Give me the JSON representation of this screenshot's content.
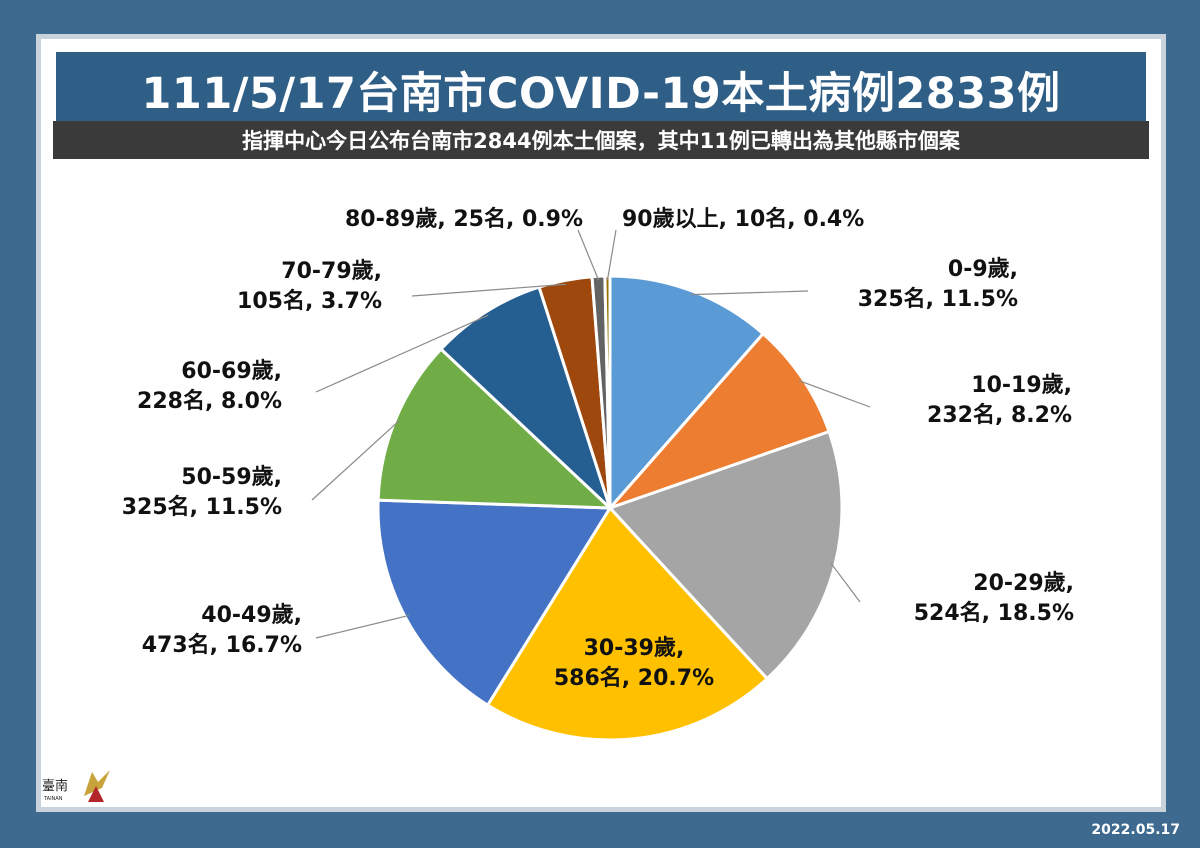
{
  "title": "111/5/17台南市COVID-19本土病例2833例",
  "subtitle": "指揮中心今日公布台南市2844例本土個案，其中11例已轉出為其他縣市個案",
  "date": "2022.05.17",
  "logo": {
    "text": "臺南",
    "sub": "TAINAN",
    "icon": "tainan-city-logo"
  },
  "chart_data": {
    "type": "pie",
    "title": "111/5/17台南市COVID-19本土病例2833例",
    "total": 2833,
    "slices": [
      {
        "category": "0-9歲",
        "count": 325,
        "percent": 11.5,
        "label_line1": "0-9歲,",
        "label_line2": "325名, 11.5%",
        "color": "#5b9bd5"
      },
      {
        "category": "10-19歲",
        "count": 232,
        "percent": 8.2,
        "label_line1": "10-19歲,",
        "label_line2": "232名, 8.2%",
        "color": "#ed7d31"
      },
      {
        "category": "20-29歲",
        "count": 524,
        "percent": 18.5,
        "label_line1": "20-29歲,",
        "label_line2": "524名, 18.5%",
        "color": "#a5a5a5"
      },
      {
        "category": "30-39歲",
        "count": 586,
        "percent": 20.7,
        "label_line1": "30-39歲,",
        "label_line2": "586名, 20.7%",
        "color": "#ffc000"
      },
      {
        "category": "40-49歲",
        "count": 473,
        "percent": 16.7,
        "label_line1": "40-49歲,",
        "label_line2": "473名, 16.7%",
        "color": "#4472c4"
      },
      {
        "category": "50-59歲",
        "count": 325,
        "percent": 11.5,
        "label_line1": "50-59歲,",
        "label_line2": "325名, 11.5%",
        "color": "#70ad47"
      },
      {
        "category": "60-69歲",
        "count": 228,
        "percent": 8.0,
        "label_line1": "60-69歲,",
        "label_line2": "228名, 8.0%",
        "color": "#255e91"
      },
      {
        "category": "70-79歲",
        "count": 105,
        "percent": 3.7,
        "label_line1": "70-79歲,",
        "label_line2": "105名, 3.7%",
        "color": "#9e480e"
      },
      {
        "category": "80-89歲",
        "count": 25,
        "percent": 0.9,
        "label_line1": "80-89歲, 25名, 0.9%",
        "label_line2": "",
        "color": "#636363"
      },
      {
        "category": "90歲以上",
        "count": 10,
        "percent": 0.4,
        "label_line1": "90歲以上, 10名, 0.4%",
        "label_line2": "",
        "color": "#997300"
      }
    ]
  }
}
